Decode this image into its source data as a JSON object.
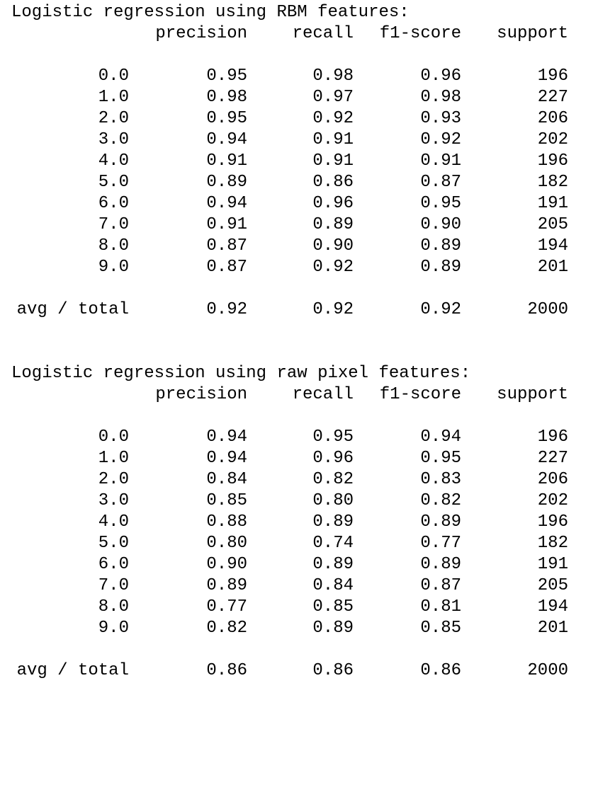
{
  "reports": [
    {
      "title": "Logistic regression using RBM features:",
      "headers": [
        "precision",
        "recall",
        "f1-score",
        "support"
      ],
      "rows": [
        {
          "label": "0.0",
          "precision": "0.95",
          "recall": "0.98",
          "f1": "0.96",
          "support": "196"
        },
        {
          "label": "1.0",
          "precision": "0.98",
          "recall": "0.97",
          "f1": "0.98",
          "support": "227"
        },
        {
          "label": "2.0",
          "precision": "0.95",
          "recall": "0.92",
          "f1": "0.93",
          "support": "206"
        },
        {
          "label": "3.0",
          "precision": "0.94",
          "recall": "0.91",
          "f1": "0.92",
          "support": "202"
        },
        {
          "label": "4.0",
          "precision": "0.91",
          "recall": "0.91",
          "f1": "0.91",
          "support": "196"
        },
        {
          "label": "5.0",
          "precision": "0.89",
          "recall": "0.86",
          "f1": "0.87",
          "support": "182"
        },
        {
          "label": "6.0",
          "precision": "0.94",
          "recall": "0.96",
          "f1": "0.95",
          "support": "191"
        },
        {
          "label": "7.0",
          "precision": "0.91",
          "recall": "0.89",
          "f1": "0.90",
          "support": "205"
        },
        {
          "label": "8.0",
          "precision": "0.87",
          "recall": "0.90",
          "f1": "0.89",
          "support": "194"
        },
        {
          "label": "9.0",
          "precision": "0.87",
          "recall": "0.92",
          "f1": "0.89",
          "support": "201"
        }
      ],
      "total": {
        "label": "avg / total",
        "precision": "0.92",
        "recall": "0.92",
        "f1": "0.92",
        "support": "2000"
      }
    },
    {
      "title": "Logistic regression using raw pixel features:",
      "headers": [
        "precision",
        "recall",
        "f1-score",
        "support"
      ],
      "rows": [
        {
          "label": "0.0",
          "precision": "0.94",
          "recall": "0.95",
          "f1": "0.94",
          "support": "196"
        },
        {
          "label": "1.0",
          "precision": "0.94",
          "recall": "0.96",
          "f1": "0.95",
          "support": "227"
        },
        {
          "label": "2.0",
          "precision": "0.84",
          "recall": "0.82",
          "f1": "0.83",
          "support": "206"
        },
        {
          "label": "3.0",
          "precision": "0.85",
          "recall": "0.80",
          "f1": "0.82",
          "support": "202"
        },
        {
          "label": "4.0",
          "precision": "0.88",
          "recall": "0.89",
          "f1": "0.89",
          "support": "196"
        },
        {
          "label": "5.0",
          "precision": "0.80",
          "recall": "0.74",
          "f1": "0.77",
          "support": "182"
        },
        {
          "label": "6.0",
          "precision": "0.90",
          "recall": "0.89",
          "f1": "0.89",
          "support": "191"
        },
        {
          "label": "7.0",
          "precision": "0.89",
          "recall": "0.84",
          "f1": "0.87",
          "support": "205"
        },
        {
          "label": "8.0",
          "precision": "0.77",
          "recall": "0.85",
          "f1": "0.81",
          "support": "194"
        },
        {
          "label": "9.0",
          "precision": "0.82",
          "recall": "0.89",
          "f1": "0.85",
          "support": "201"
        }
      ],
      "total": {
        "label": "avg / total",
        "precision": "0.86",
        "recall": "0.86",
        "f1": "0.86",
        "support": "2000"
      }
    }
  ]
}
